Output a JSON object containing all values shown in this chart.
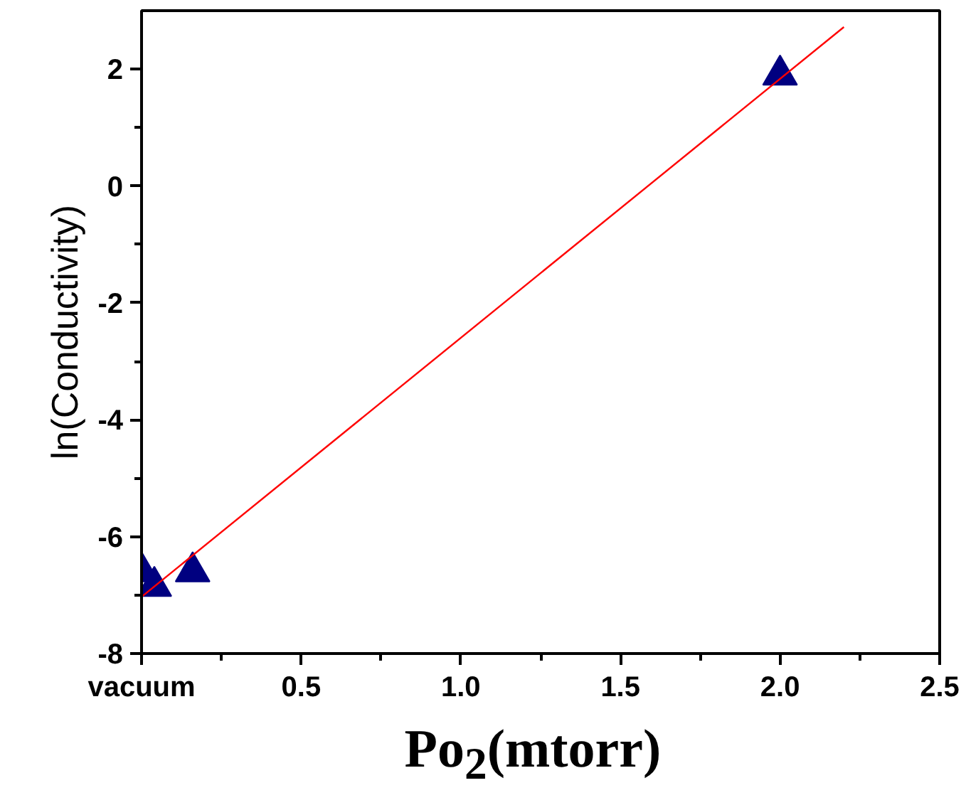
{
  "chart_data": {
    "type": "scatter",
    "xlabel": "Po$_{2}$(mtorr)",
    "ylabel": "ln(Conductivity)",
    "xlim": [
      0,
      2.5
    ],
    "ylim": [
      -8,
      3
    ],
    "xticks": [
      {
        "value": 0,
        "label": "vacuum"
      },
      0.5,
      {
        "value": 1,
        "label": "1.0"
      },
      1.5,
      {
        "value": 2,
        "label": "2.0"
      },
      2.5
    ],
    "yticks": [
      -8,
      -6,
      -4,
      -2,
      0,
      2
    ],
    "grid": false,
    "marker": "triangle",
    "series": [
      {
        "color": "#000080",
        "x": [
          0,
          0.04,
          0.16,
          2.0
        ],
        "values": [
          -6.6,
          -6.85,
          -6.6,
          1.9
        ]
      },
      {
        "type": "line",
        "marker": "none",
        "color": "#ff0000",
        "x": [
          0,
          2.2
        ],
        "values": [
          -7.03,
          2.72
        ]
      }
    ]
  }
}
